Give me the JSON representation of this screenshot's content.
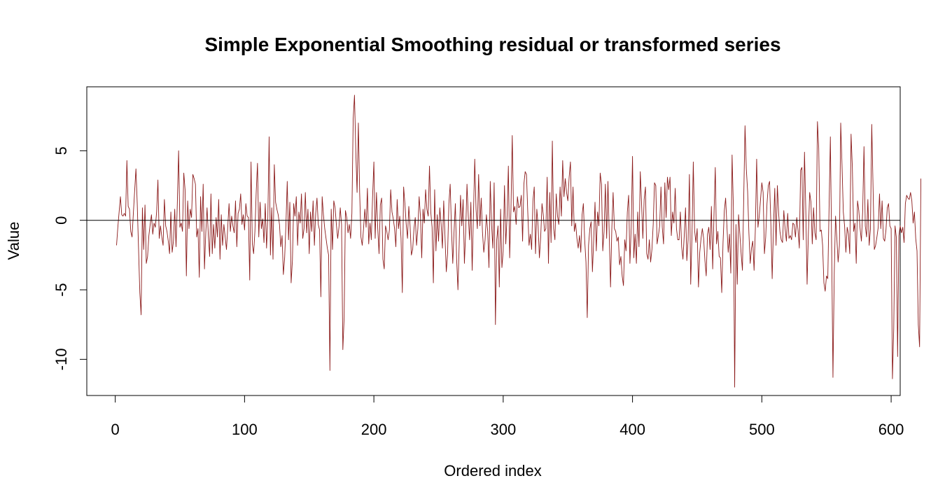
{
  "chart_data": {
    "type": "line",
    "title": "Simple Exponential Smoothing residual or transformed series",
    "xlabel": "Ordered index",
    "ylabel": "Value",
    "xlim": [
      -22,
      607
    ],
    "ylim": [
      -12.6,
      9.6
    ],
    "x_ticks": [
      0,
      100,
      200,
      300,
      400,
      500,
      600
    ],
    "y_ticks": [
      -10,
      -5,
      0,
      5
    ],
    "reference_line": 0,
    "grid": false,
    "legend": "none",
    "colors": {
      "series": "#8B1A1A",
      "axis": "#000000",
      "reference": "#000000"
    },
    "series": [
      {
        "x_start": 1,
        "values": [
          -1.8,
          -0.5,
          0.6,
          1.7,
          0.4,
          0.3,
          0.5,
          0.3,
          4.3,
          1.0,
          0.8,
          -0.8,
          -1.2,
          0.5,
          2.1,
          3.7,
          1.2,
          -2.0,
          -5.2,
          -6.8,
          0.9,
          -2.1,
          1.1,
          -3.1,
          -2.6,
          -1.1,
          -0.3,
          0.4,
          -1.0,
          -0.2,
          -0.5,
          0.6,
          2.9,
          -1.3,
          -0.4,
          -1.2,
          -1.8,
          1.5,
          -0.4,
          -0.8,
          -1.5,
          -2.4,
          0.6,
          -2.3,
          -1.5,
          0.8,
          -1.9,
          1.2,
          5.0,
          -0.5,
          -0.2,
          -0.8,
          3.4,
          2.2,
          -4.0,
          1.4,
          -0.6,
          0.8,
          0.2,
          3.3,
          3.0,
          2.6,
          -1.2,
          -0.6,
          -4.1,
          1.7,
          -0.8,
          2.6,
          -3.5,
          -0.9,
          0.9,
          -1.1,
          -2.6,
          1.9,
          -2.4,
          -0.3,
          -2.0,
          0.2,
          -1.2,
          1.5,
          -2.8,
          0.4,
          -1.8,
          -0.3,
          -1.2,
          -2.1,
          -0.5,
          1.2,
          -0.8,
          0.3,
          -0.4,
          -0.9,
          1.4,
          -1.9,
          0.5,
          0.8,
          1.9,
          -0.3,
          0.4,
          -0.7,
          1.2,
          0.3,
          0.2,
          -4.3,
          4.2,
          -1.7,
          -2.4,
          -0.8,
          2.0,
          4.1,
          -1.2,
          1.3,
          -0.6,
          0.1,
          -1.6,
          1.2,
          -2.0,
          0.2,
          6.0,
          -2.5,
          0.9,
          -2.8,
          4.0,
          1.3,
          0.8,
          0.4,
          -0.3,
          -1.9,
          -1.1,
          -3.9,
          -2.7,
          -0.3,
          2.8,
          -1.4,
          1.3,
          -4.5,
          -2.9,
          1.2,
          0.3,
          1.7,
          -1.8,
          0.6,
          -0.2,
          1.9,
          -1.3,
          -0.6,
          2.0,
          -0.9,
          0.8,
          -2.4,
          0.6,
          -0.8,
          1.4,
          -1.8,
          0.5,
          1.6,
          -0.3,
          -0.7,
          -5.5,
          1.7,
          0.4,
          -0.6,
          -1.3,
          -2.0,
          -2.5,
          -10.8,
          0.8,
          -2.1,
          1.4,
          0.9,
          -0.3,
          -1.3,
          -0.5,
          0.9,
          -0.3,
          -9.3,
          -7.0,
          0.7,
          0.2,
          -0.9,
          -0.3,
          -1.3,
          0.5,
          7.3,
          9.0,
          5.0,
          2.0,
          7.0,
          2.0,
          -1.2,
          -1.8,
          -0.6,
          0.8,
          -0.5,
          2.3,
          -1.7,
          -0.2,
          -1.4,
          1.7,
          4.2,
          -1.3,
          2.0,
          -0.6,
          -2.4,
          1.1,
          1.6,
          -2.8,
          -3.5,
          -0.4,
          -0.8,
          -1.4,
          -0.7,
          2.2,
          0.6,
          0.1,
          -0.6,
          -1.9,
          1.5,
          -0.6,
          0.3,
          -1.3,
          -5.2,
          2.4,
          1.2,
          -0.3,
          -1.3,
          1.0,
          -0.4,
          -2.5,
          -2.1,
          -0.6,
          0.2,
          -1.8,
          -0.6,
          1.7,
          0.3,
          -2.7,
          0.8,
          -0.2,
          2.2,
          0.8,
          0.3,
          3.9,
          0.6,
          -0.5,
          -4.5,
          2.2,
          -2.2,
          0.4,
          -1.5,
          0.9,
          -0.3,
          -2.0,
          1.4,
          -1.2,
          -3.7,
          -2.4,
          1.2,
          2.6,
          -0.6,
          -3.1,
          -0.8,
          1.2,
          -2.8,
          -5.0,
          -1.6,
          1.8,
          -0.4,
          1.5,
          -3.1,
          -0.8,
          2.6,
          0.3,
          -1.4,
          1.3,
          -3.6,
          0.4,
          4.4,
          0.8,
          -0.6,
          3.3,
          -0.4,
          1.6,
          -0.9,
          -2.3,
          -1.4,
          0.4,
          -0.8,
          -3.4,
          2.8,
          -0.3,
          -2.0,
          2.7,
          -7.5,
          -1.4,
          -0.4,
          -4.8,
          0.8,
          -3.4,
          -2.2,
          2.5,
          -1.7,
          0.3,
          3.9,
          -2.7,
          0.8,
          6.1,
          0.6,
          1.0,
          -0.3,
          1.7,
          0.9,
          1.0,
          1.8,
          -1.5,
          2.6,
          3.5,
          3.3,
          0.6,
          -1.8,
          -1.0,
          -2.1,
          1.4,
          2.4,
          -2.4,
          0.8,
          -0.4,
          -2.7,
          -1.2,
          1.2,
          0.4,
          -0.8,
          -0.6,
          3.1,
          -3.1,
          2.0,
          -1.6,
          5.7,
          -0.6,
          -1.4,
          1.9,
          0.3,
          -0.3,
          2.4,
          0.3,
          4.3,
          1.7,
          3.0,
          2.0,
          1.4,
          3.1,
          4.2,
          -0.4,
          2.4,
          -0.8,
          -0.2,
          -1.3,
          -2.0,
          -1.1,
          -2.3,
          0.4,
          1.2,
          -1.4,
          -3.0,
          -7.0,
          -1.8,
          -0.6,
          -0.1,
          -3.7,
          -1.4,
          1.3,
          -2.2,
          0.6,
          -0.4,
          3.4,
          2.6,
          -2.2,
          -0.8,
          2.6,
          -1.3,
          2.8,
          -1.0,
          -4.8,
          -0.6,
          2.0,
          -0.6,
          -0.8,
          -1.5,
          -1.2,
          -3.2,
          -2.6,
          -4.0,
          -4.7,
          -1.4,
          -2.2,
          0.6,
          1.8,
          -3.1,
          -0.5,
          4.6,
          -2.7,
          -1.0,
          -3.1,
          0.6,
          -1.9,
          3.5,
          1.2,
          -1.3,
          1.5,
          2.4,
          -2.4,
          -2.8,
          -1.4,
          -3.0,
          -2.1,
          -0.3,
          2.7,
          2.5,
          -1.7,
          -1.1,
          -0.4,
          2.4,
          -0.5,
          -1.7,
          2.7,
          0.2,
          3.1,
          2.2,
          3.1,
          -1.1,
          0.6,
          -0.2,
          2.3,
          -0.6,
          -1.4,
          -1.4,
          0.6,
          -1.9,
          -2.8,
          -1.1,
          0.9,
          -2.9,
          -1.4,
          3.3,
          -4.6,
          -1.1,
          4.2,
          -0.7,
          -1.6,
          -0.6,
          -4.8,
          -2.3,
          -1.3,
          -0.6,
          -1.3,
          -2.9,
          -4.0,
          -1.0,
          -0.5,
          -2.1,
          1.0,
          -3.5,
          0.4,
          3.8,
          -1.7,
          -0.8,
          -2.6,
          -2.7,
          -5.2,
          -1.6,
          0.7,
          1.6,
          -0.4,
          -2.3,
          -1.0,
          -3.8,
          4.7,
          0.9,
          -12.0,
          -0.3,
          -4.6,
          0.4,
          -1.0,
          -2.4,
          -3.6,
          1.6,
          6.8,
          3.7,
          2.1,
          -0.9,
          -3.1,
          -2.0,
          -1.5,
          -3.6,
          -0.6,
          4.4,
          -0.5,
          0.3,
          1.5,
          2.7,
          2.0,
          -2.4,
          -1.2,
          1.2,
          2.5,
          2.8,
          -0.3,
          -4.2,
          -0.5,
          2.3,
          -1.8,
          2.5,
          0.5,
          -0.8,
          -1.4,
          -1.6,
          0.7,
          -0.6,
          -1.5,
          0.5,
          -1.3,
          -1.1,
          -1.4,
          -0.2,
          -0.3,
          -1.2,
          0.2,
          -0.7,
          -2.0,
          3.6,
          3.8,
          -1.4,
          4.9,
          0.7,
          -4.6,
          -0.9,
          2.0,
          1.3,
          -1.7,
          0.9,
          -0.9,
          -1.4,
          7.1,
          5.2,
          -0.8,
          -0.7,
          -1.8,
          -4.5,
          -5.1,
          -4.0,
          -4.2,
          0.9,
          6.0,
          -2.0,
          -11.3,
          -3.8,
          0.3,
          -1.3,
          -3.0,
          -1.8,
          7.0,
          4.0,
          0.6,
          -0.4,
          -2.3,
          -0.5,
          -1.0,
          -2.4,
          6.2,
          3.8,
          -0.8,
          -0.2,
          -3.1,
          1.4,
          0.7,
          -0.6,
          -1.5,
          0.7,
          5.3,
          -0.4,
          -1.2,
          1.5,
          -1.8,
          -0.6,
          6.9,
          2.4,
          -2.1,
          -1.8,
          -1.2,
          -0.5,
          1.9,
          -0.6,
          1.4,
          -1.3,
          -1.5,
          -0.7,
          0.9,
          1.2,
          -0.4,
          -0.6,
          -11.4,
          -7.8,
          -0.4,
          -1.2,
          -9.8,
          -1.1,
          -0.4,
          -0.9,
          -0.5,
          -1.6,
          1.2,
          1.8,
          1.6,
          1.5,
          2.0,
          1.4,
          -0.2,
          0.6,
          -1.3,
          -2.2,
          -7.5,
          -9.1,
          3.0
        ]
      }
    ]
  }
}
